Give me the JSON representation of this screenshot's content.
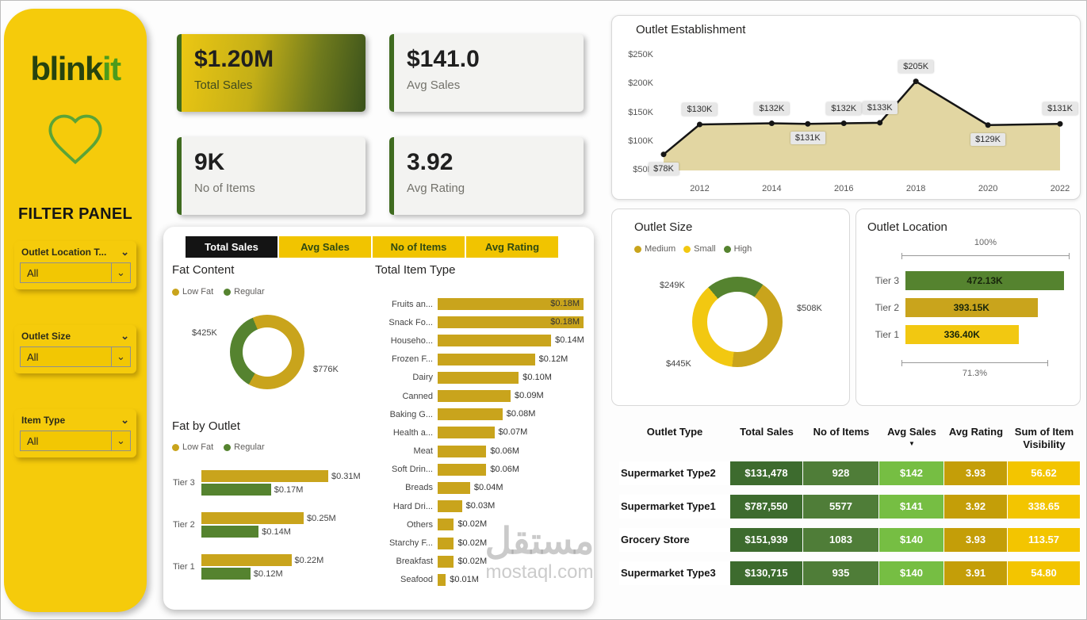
{
  "colors": {
    "gold": "#C9A41C",
    "bright_yellow": "#F2C811",
    "green": "#55832F",
    "accent_dark_green": "#3F6B1F",
    "sidebar_yellow": "#F5CB0B",
    "tab_active_bg": "#141414",
    "tab_inactive_bg": "#F1C400"
  },
  "sidebar": {
    "brand_bold": "blink",
    "brand_accent": "it",
    "title": "FILTER PANEL",
    "filters": [
      {
        "label": "Outlet Location T...",
        "value": "All"
      },
      {
        "label": "Outlet Size",
        "value": "All"
      },
      {
        "label": "Item Type",
        "value": "All"
      }
    ]
  },
  "kpis": [
    {
      "value": "$1.20M",
      "label": "Total Sales"
    },
    {
      "value": "$141.0",
      "label": "Avg Sales"
    },
    {
      "value": "9K",
      "label": "No of Items"
    },
    {
      "value": "3.92",
      "label": "Avg Rating"
    }
  ],
  "tabs": [
    {
      "label": "Total Sales",
      "active": true
    },
    {
      "label": "Avg Sales",
      "active": false
    },
    {
      "label": "No of Items",
      "active": false
    },
    {
      "label": "Avg Rating",
      "active": false
    }
  ],
  "watermark": {
    "line1": "مستقل",
    "line2": "mostaql.com"
  },
  "chart_data": [
    {
      "id": "fat_content",
      "type": "pie",
      "title": "Fat Content",
      "legend": [
        {
          "name": "Low Fat",
          "color": "#C9A41C"
        },
        {
          "name": "Regular",
          "color": "#55832F"
        }
      ],
      "slices": [
        {
          "name": "Low Fat",
          "value": 776,
          "label": "$776K",
          "color": "#C9A41C"
        },
        {
          "name": "Regular",
          "value": 425,
          "label": "$425K",
          "color": "#55832F"
        }
      ],
      "start_angle": 337,
      "hole": 0.66
    },
    {
      "id": "fat_by_outlet",
      "type": "bar",
      "orientation": "horizontal",
      "title": "Fat by Outlet",
      "legend": [
        {
          "name": "Low Fat",
          "color": "#C9A41C"
        },
        {
          "name": "Regular",
          "color": "#55832F"
        }
      ],
      "categories": [
        "Tier 3",
        "Tier 2",
        "Tier 1"
      ],
      "series": [
        {
          "name": "Low Fat",
          "color": "#C9A41C",
          "values": [
            0.31,
            0.25,
            0.22
          ],
          "labels": [
            "$0.31M",
            "$0.25M",
            "$0.22M"
          ]
        },
        {
          "name": "Regular",
          "color": "#55832F",
          "values": [
            0.17,
            0.14,
            0.12
          ],
          "labels": [
            "$0.17M",
            "$0.14M",
            "$0.12M"
          ]
        }
      ]
    },
    {
      "id": "total_item_type",
      "type": "bar",
      "orientation": "horizontal",
      "title": "Total Item Type",
      "color": "#C9A41C",
      "categories": [
        "Fruits an...",
        "Snack Fo...",
        "Househo...",
        "Frozen F...",
        "Dairy",
        "Canned",
        "Baking G...",
        "Health a...",
        "Meat",
        "Soft Drin...",
        "Breads",
        "Hard Dri...",
        "Others",
        "Starchy F...",
        "Breakfast",
        "Seafood"
      ],
      "values": [
        0.18,
        0.18,
        0.14,
        0.12,
        0.1,
        0.09,
        0.08,
        0.07,
        0.06,
        0.06,
        0.04,
        0.03,
        0.02,
        0.02,
        0.02,
        0.01
      ],
      "labels": [
        "$0.18M",
        "$0.18M",
        "$0.14M",
        "$0.12M",
        "$0.10M",
        "$0.09M",
        "$0.08M",
        "$0.07M",
        "$0.06M",
        "$0.06M",
        "$0.04M",
        "$0.03M",
        "$0.02M",
        "$0.02M",
        "$0.02M",
        "$0.01M"
      ]
    },
    {
      "id": "outlet_establishment",
      "type": "area",
      "title": "Outlet Establishment",
      "x": [
        2011,
        2012,
        2014,
        2015,
        2016,
        2017,
        2018,
        2020,
        2022
      ],
      "values": [
        78,
        130,
        132,
        131,
        132,
        133,
        205,
        129,
        131
      ],
      "labels": [
        "$78K",
        "$130K",
        "$132K",
        "$131K",
        "$132K",
        "$133K",
        "$205K",
        "$129K",
        "$131K"
      ],
      "label_below": [
        true,
        false,
        false,
        true,
        false,
        false,
        false,
        true,
        false
      ],
      "ylim": [
        50,
        250
      ],
      "yticks": [
        {
          "v": 250,
          "label": "$250K"
        },
        {
          "v": 200,
          "label": "$200K"
        },
        {
          "v": 150,
          "label": "$150K"
        },
        {
          "v": 100,
          "label": "$100K"
        },
        {
          "v": 50,
          "label": "$50K"
        }
      ],
      "xticks": [
        {
          "v": 2012,
          "label": "2012"
        },
        {
          "v": 2014,
          "label": "2014"
        },
        {
          "v": 2016,
          "label": "2016"
        },
        {
          "v": 2018,
          "label": "2018"
        },
        {
          "v": 2020,
          "label": "2020"
        },
        {
          "v": 2022,
          "label": "2022"
        }
      ],
      "line_color": "#151515",
      "fill_color": "#E2D6A2"
    },
    {
      "id": "outlet_size",
      "type": "pie",
      "title": "Outlet Size",
      "legend": [
        {
          "name": "Medium",
          "color": "#C9A41C"
        },
        {
          "name": "Small",
          "color": "#F2C811"
        },
        {
          "name": "High",
          "color": "#55832F"
        }
      ],
      "slices": [
        {
          "name": "High",
          "value": 249,
          "label": "$249K",
          "color": "#55832F"
        },
        {
          "name": "Medium",
          "value": 508,
          "label": "$508K",
          "color": "#C9A41C"
        },
        {
          "name": "Small",
          "value": 445,
          "label": "$445K",
          "color": "#F2C811"
        }
      ],
      "start_angle": 320,
      "hole": 0.66
    },
    {
      "id": "outlet_location",
      "type": "bar",
      "orientation": "horizontal",
      "title": "Outlet Location",
      "categories": [
        "Tier 3",
        "Tier 2",
        "Tier 1"
      ],
      "values": [
        472.13,
        393.15,
        336.4
      ],
      "labels": [
        "472.13K",
        "393.15K",
        "336.40K"
      ],
      "bar_colors": [
        "#55832F",
        "#C9A41C",
        "#F2C811"
      ],
      "scale_top": "100%",
      "scale_bottom": "71.3%"
    },
    {
      "id": "outlet_table",
      "type": "table",
      "columns": [
        "Outlet Type",
        "Total Sales",
        "No of Items",
        "Avg Sales",
        "Avg Rating",
        "Sum of Item Visibility"
      ],
      "sort_column": "Avg Sales",
      "sort_indicator": "▼",
      "column_colors": [
        "#FFFFFF",
        "#3D6B2E",
        "#4F7D38",
        "#76BE43",
        "#C49E08",
        "#F3C500"
      ],
      "rows": [
        [
          "Supermarket Type2",
          "$131,478",
          "928",
          "$142",
          "3.93",
          "56.62"
        ],
        [
          "Supermarket Type1",
          "$787,550",
          "5577",
          "$141",
          "3.92",
          "338.65"
        ],
        [
          "Grocery Store",
          "$151,939",
          "1083",
          "$140",
          "3.93",
          "113.57"
        ],
        [
          "Supermarket Type3",
          "$130,715",
          "935",
          "$140",
          "3.91",
          "54.80"
        ]
      ]
    }
  ]
}
